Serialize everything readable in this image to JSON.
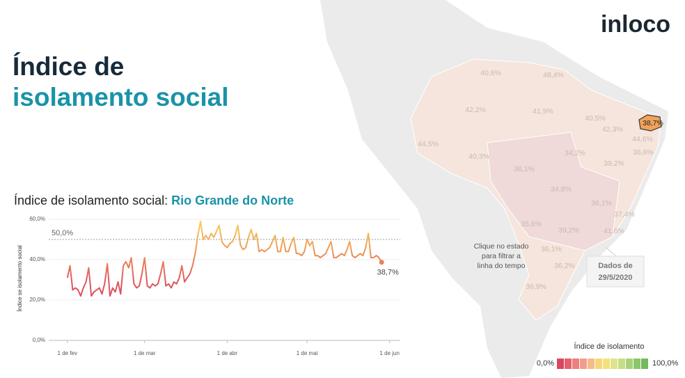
{
  "logo": "inloco",
  "title": {
    "line1": "Índice de",
    "line2": "isolamento social"
  },
  "chart_data": {
    "type": "line",
    "title": "Índice de isolamento social: ",
    "title_highlight": "Rio Grande do Norte",
    "y_label": "Índice se isolamento social",
    "x": [
      "2020-02-01",
      "2020-02-02",
      "2020-02-03",
      "2020-02-04",
      "2020-02-05",
      "2020-02-06",
      "2020-02-07",
      "2020-02-08",
      "2020-02-09",
      "2020-02-10",
      "2020-02-11",
      "2020-02-12",
      "2020-02-13",
      "2020-02-14",
      "2020-02-15",
      "2020-02-16",
      "2020-02-17",
      "2020-02-18",
      "2020-02-19",
      "2020-02-20",
      "2020-02-21",
      "2020-02-22",
      "2020-02-23",
      "2020-02-24",
      "2020-02-25",
      "2020-02-26",
      "2020-02-27",
      "2020-02-28",
      "2020-02-29",
      "2020-03-01",
      "2020-03-02",
      "2020-03-03",
      "2020-03-04",
      "2020-03-05",
      "2020-03-06",
      "2020-03-07",
      "2020-03-08",
      "2020-03-09",
      "2020-03-10",
      "2020-03-11",
      "2020-03-12",
      "2020-03-13",
      "2020-03-14",
      "2020-03-15",
      "2020-03-16",
      "2020-03-17",
      "2020-03-18",
      "2020-03-19",
      "2020-03-20",
      "2020-03-21",
      "2020-03-22",
      "2020-03-23",
      "2020-03-24",
      "2020-03-25",
      "2020-03-26",
      "2020-03-27",
      "2020-03-28",
      "2020-03-29",
      "2020-03-30",
      "2020-03-31",
      "2020-04-01",
      "2020-04-02",
      "2020-04-03",
      "2020-04-04",
      "2020-04-05",
      "2020-04-06",
      "2020-04-07",
      "2020-04-08",
      "2020-04-09",
      "2020-04-10",
      "2020-04-11",
      "2020-04-12",
      "2020-04-13",
      "2020-04-14",
      "2020-04-15",
      "2020-04-16",
      "2020-04-17",
      "2020-04-18",
      "2020-04-19",
      "2020-04-20",
      "2020-04-21",
      "2020-04-22",
      "2020-04-23",
      "2020-04-24",
      "2020-04-25",
      "2020-04-26",
      "2020-04-27",
      "2020-04-28",
      "2020-04-29",
      "2020-04-30",
      "2020-05-01",
      "2020-05-02",
      "2020-05-03",
      "2020-05-04",
      "2020-05-05",
      "2020-05-06",
      "2020-05-07",
      "2020-05-08",
      "2020-05-09",
      "2020-05-10",
      "2020-05-11",
      "2020-05-12",
      "2020-05-13",
      "2020-05-14",
      "2020-05-15",
      "2020-05-16",
      "2020-05-17",
      "2020-05-18",
      "2020-05-19",
      "2020-05-20",
      "2020-05-21",
      "2020-05-22",
      "2020-05-23",
      "2020-05-24",
      "2020-05-25",
      "2020-05-26",
      "2020-05-27",
      "2020-05-28",
      "2020-05-29"
    ],
    "values": [
      31,
      37,
      25,
      26,
      25,
      22,
      26,
      29,
      36,
      22,
      24,
      25,
      26,
      23,
      28,
      38,
      22,
      26,
      24,
      29,
      23,
      37,
      39,
      36,
      41,
      28,
      26,
      27,
      33,
      41,
      27,
      26,
      28,
      27,
      28,
      33,
      39,
      27,
      28,
      26,
      29,
      28,
      31,
      37,
      29,
      31,
      33,
      37,
      43,
      52,
      59,
      50,
      52,
      50,
      53,
      51,
      54,
      57,
      49,
      47,
      46,
      48,
      49,
      52,
      57,
      47,
      45,
      46,
      51,
      55,
      50,
      53,
      44,
      45,
      44,
      45,
      46,
      49,
      52,
      44,
      44,
      51,
      44,
      44,
      48,
      51,
      43,
      43,
      42,
      44,
      50,
      47,
      49,
      42,
      42,
      41,
      42,
      43,
      46,
      49,
      41,
      41,
      42,
      43,
      42,
      45,
      49,
      42,
      41,
      42,
      43,
      42,
      46,
      53,
      41,
      41,
      42,
      41,
      38.7
    ],
    "end_label": "38,7%",
    "gradient": [
      "#d9475f",
      "#d9475f",
      "#e0585e",
      "#ee9a55",
      "#f5d65a"
    ],
    "ylim": [
      0,
      60
    ],
    "yticks": [
      {
        "value": 0,
        "label": "0,0%"
      },
      {
        "value": 20,
        "label": "20,0%"
      },
      {
        "value": 40,
        "label": "40,0%"
      },
      {
        "value": 60,
        "label": "60,0%"
      }
    ],
    "xlim": [
      "2020-01-25",
      "2020-06-05"
    ],
    "xticks": [
      {
        "value": "2020-02-01",
        "label": "1 de fev"
      },
      {
        "value": "2020-03-01",
        "label": "1 de mar"
      },
      {
        "value": "2020-04-01",
        "label": "1 de abr"
      },
      {
        "value": "2020-05-01",
        "label": "1 de mai"
      },
      {
        "value": "2020-06-01",
        "label": "1 de jun"
      }
    ],
    "reference": {
      "value": 50,
      "label": "50,0%"
    },
    "grid": true
  },
  "map": {
    "labels": [
      "40,6%",
      "48,4%",
      "42,2%",
      "41,9%",
      "40,5%",
      "42,3%",
      "38,7%",
      "44,5%",
      "44,6%",
      "36,6%",
      "40,3%",
      "34,2%",
      "39,2%",
      "36,1%",
      "34,8%",
      "36,1%",
      "37,4%",
      "35,6%",
      "39,2%",
      "41,6%",
      "36,1%",
      "36,2%",
      "36,9%"
    ],
    "note": [
      "Clique no estado",
      "para filtrar a",
      "linha do tempo"
    ],
    "date_box": [
      "Dados de",
      "29/5/2020"
    ]
  },
  "legend": {
    "title": "Índice de isolamento",
    "min_label": "0,0%",
    "max_label": "100,0%",
    "colors": [
      "#d9475f",
      "#e3606c",
      "#ec7f7f",
      "#f29c8e",
      "#f5bb8a",
      "#f6d67a",
      "#f3e27a",
      "#dfe38a",
      "#c6dd88",
      "#a9d17a",
      "#8cc66c",
      "#74b95c"
    ]
  }
}
